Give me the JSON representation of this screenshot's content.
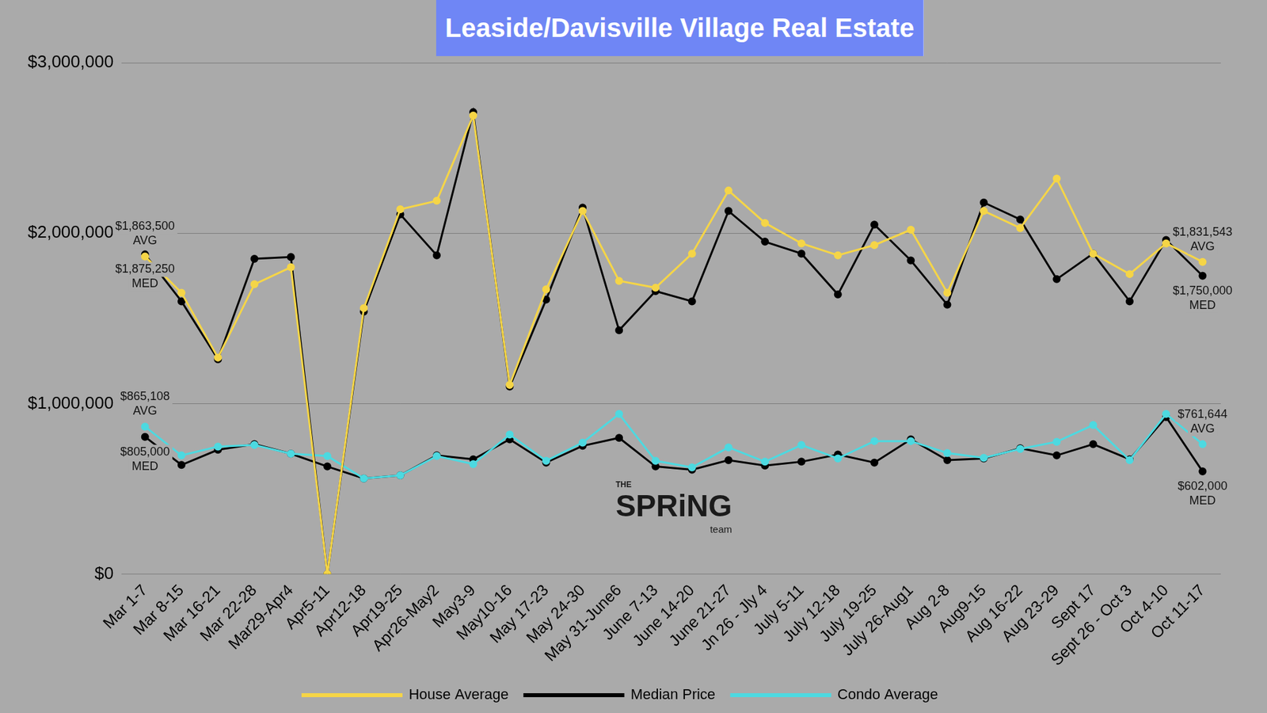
{
  "chart_data": {
    "type": "line",
    "title": "Leaside/Davisville Village Real Estate",
    "watermark": {
      "top": "THE",
      "main": "SPRiNG",
      "bottom": "team"
    },
    "categories": [
      "Mar 1-7",
      "Mar 8-15",
      "Mar 16-21",
      "Mar 22-28",
      "Mar29-Apr4",
      "Apr5-11",
      "Apr12-18",
      "Apr19-25",
      "Apr26-May2",
      "May3-9",
      "May10-16",
      "May 17-23",
      "May 24-30",
      "May 31-June6",
      "June 7-13",
      "June 14-20",
      "June 21-27",
      "Jn 26 - Jly 4",
      "July 5-11",
      "July 12-18",
      "July 19-25",
      "July 26-Aug1",
      "Aug 2-8",
      "Aug9-15",
      "Aug 16-22",
      "Aug 23-29",
      "Sept 17",
      "Sept 26 - Oct 3",
      "Oct 4-10",
      "Oct 11-17"
    ],
    "series": [
      {
        "name": "House Average",
        "color": "#f5d547",
        "marker": "circle",
        "line_style": "solid",
        "values": [
          1863500,
          1650000,
          1270000,
          1700000,
          1800000,
          0,
          1560000,
          2140000,
          2190000,
          2690000,
          1110000,
          1670000,
          2130000,
          1720000,
          1680000,
          1880000,
          2250000,
          2060000,
          1940000,
          1870000,
          1930000,
          2020000,
          1650000,
          2130000,
          2030000,
          2320000,
          1880000,
          1760000,
          1940000,
          1831543
        ],
        "annotations": {
          "first": [
            "$1,863,500",
            "AVG"
          ],
          "last": [
            "$1,831,543",
            "AVG"
          ]
        }
      },
      {
        "name": "Median Price",
        "color": "#000000",
        "marker": "circle",
        "line_style": "solid",
        "values": [
          1875250,
          1600000,
          1260000,
          1850000,
          1860000,
          0,
          1540000,
          2110000,
          1870000,
          2710000,
          1100000,
          1610000,
          2150000,
          1430000,
          1660000,
          1600000,
          2130000,
          1950000,
          1880000,
          1640000,
          2050000,
          1840000,
          1580000,
          2180000,
          2080000,
          1730000,
          1880000,
          1600000,
          1960000,
          1750000
        ],
        "annotations": {
          "first": [
            "$1,875,250",
            "MED"
          ],
          "last": [
            "$1,750,000",
            "MED"
          ]
        }
      },
      {
        "name": "Condo Average",
        "color": "#4dd9e0",
        "marker": "circle",
        "line_style": "solid",
        "values": [
          865108,
          696000,
          748000,
          757000,
          706000,
          692000,
          561000,
          579000,
          692000,
          645000,
          818000,
          664000,
          771000,
          939000,
          664000,
          626000,
          743000,
          659000,
          757000,
          678000,
          780000,
          780000,
          710000,
          682000,
          734000,
          776000,
          874000,
          668000,
          939000,
          761644
        ],
        "annotations": {
          "first": [
            "$865,108",
            "AVG"
          ],
          "last": [
            "$761,644",
            "AVG"
          ]
        }
      },
      {
        "name": "Median Price",
        "color": "#000000",
        "marker": "circle",
        "line_style": "solid",
        "values": [
          805000,
          640000,
          729000,
          762000,
          706000,
          631000,
          561000,
          579000,
          696000,
          673000,
          790000,
          654000,
          752000,
          799000,
          631000,
          612000,
          668000,
          636000,
          659000,
          701000,
          654000,
          790000,
          668000,
          678000,
          738000,
          696000,
          762000,
          673000,
          921000,
          602000
        ],
        "annotations": {
          "first": [
            "$805,000",
            "MED"
          ],
          "last": [
            "$602,000",
            "MED"
          ]
        }
      }
    ],
    "ylim": [
      0,
      3000000
    ],
    "yticks": [
      {
        "value": 0,
        "label": "$0"
      },
      {
        "value": 1000000,
        "label": "$1,000,000"
      },
      {
        "value": 2000000,
        "label": "$2,000,000"
      },
      {
        "value": 3000000,
        "label": "$3,000,000"
      }
    ],
    "grid": true,
    "legend": "bottom"
  }
}
